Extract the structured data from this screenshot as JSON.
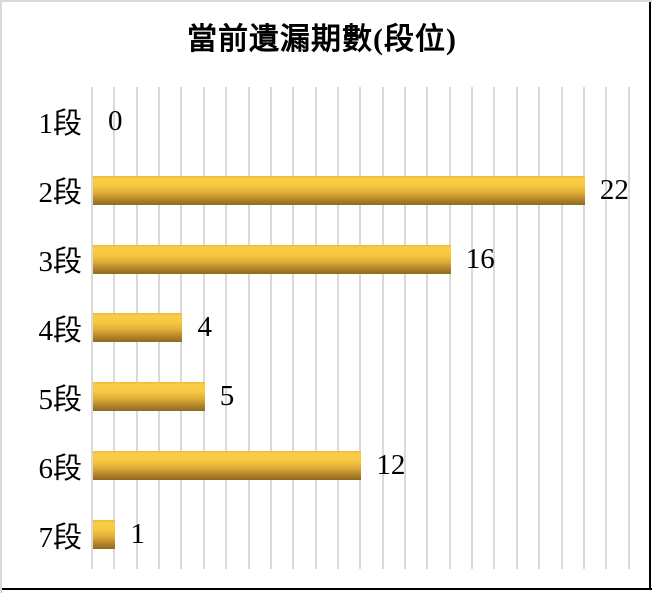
{
  "chart_data": {
    "type": "bar",
    "orientation": "horizontal",
    "title": "當前遺漏期數(段位)",
    "categories": [
      "1段",
      "2段",
      "3段",
      "4段",
      "5段",
      "6段",
      "7段"
    ],
    "values": [
      0,
      22,
      16,
      4,
      5,
      12,
      1
    ],
    "xlabel": "",
    "ylabel": "",
    "xlim": [
      0,
      24
    ],
    "grid": "vertical",
    "gridline_interval": 1,
    "legend": "none",
    "data_labels": "outside-end",
    "colors": {
      "bar_main": "#f0c33e",
      "bar_gradient_top": "#e9ba3c",
      "bar_gradient_highlight": "#facd46",
      "bar_gradient_bottom": "#8e6a1e",
      "gridline": "#d9d9d9",
      "text": "#000000",
      "background": "#ffffff",
      "frame_top_left": "#d9d9d9",
      "frame_bottom_right": "#000000"
    }
  }
}
